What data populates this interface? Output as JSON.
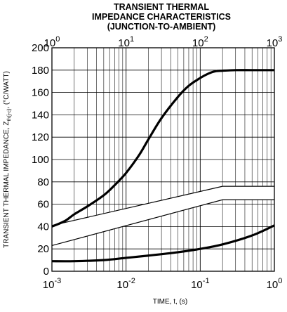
{
  "chart_data": {
    "type": "line",
    "title_lines": [
      "TRANSIENT THERMAL",
      "IMPEDANCE CHARACTERISTICS",
      "(JUNCTION-TO-AMBIENT)"
    ],
    "xlabel": "TIME, t, (s)",
    "ylabel_main": "TRANSIENT THERMAL IMPEDANCE, Z",
    "ylabel_sub": "th(j-c)",
    "ylabel_units": ", (°C/WATT)",
    "x_bottom": {
      "scale": "log",
      "range": [
        0.001,
        1
      ],
      "tick_bases": [
        "10",
        "10",
        "10",
        "10"
      ],
      "tick_exps": [
        "-3",
        "-2",
        "-1",
        "0"
      ],
      "tick_values": [
        0.001,
        0.01,
        0.1,
        1
      ]
    },
    "x_top": {
      "scale": "log",
      "range": [
        1,
        1000
      ],
      "tick_bases": [
        "10",
        "10",
        "10",
        "10"
      ],
      "tick_exps": [
        "0",
        "1",
        "2",
        "3"
      ],
      "tick_values": [
        1,
        10,
        100,
        1000
      ]
    },
    "y": {
      "range": [
        0,
        200
      ],
      "ticks": [
        0,
        20,
        40,
        60,
        80,
        100,
        120,
        140,
        160,
        180,
        200
      ],
      "tick_labels": [
        "0",
        "20",
        "40",
        "60",
        "80",
        "100",
        "120",
        "140",
        "160",
        "180",
        "200"
      ]
    },
    "grid": true,
    "series": [
      {
        "axis": "top",
        "x": [
          1,
          1.5,
          2,
          3,
          5,
          7,
          10,
          15,
          20,
          30,
          50,
          70,
          100,
          130,
          160,
          200,
          300,
          500,
          1000
        ],
        "y": [
          40,
          45,
          51,
          58,
          68,
          77,
          88,
          104,
          118,
          137,
          156,
          166,
          173,
          177,
          179,
          179.5,
          180,
          180,
          180
        ]
      },
      {
        "axis": "bottom",
        "x": [
          0.001,
          0.002,
          0.005,
          0.01,
          0.02,
          0.05,
          0.1,
          0.2,
          0.5,
          1
        ],
        "y": [
          9,
          9,
          10,
          12,
          14,
          17,
          20,
          24,
          32,
          41
        ]
      }
    ],
    "band": {
      "axis": "bottom",
      "x": [
        0.001,
        0.2,
        1
      ],
      "y_upper": [
        41,
        76,
        76
      ],
      "y_lower": [
        23,
        64,
        64
      ]
    }
  }
}
